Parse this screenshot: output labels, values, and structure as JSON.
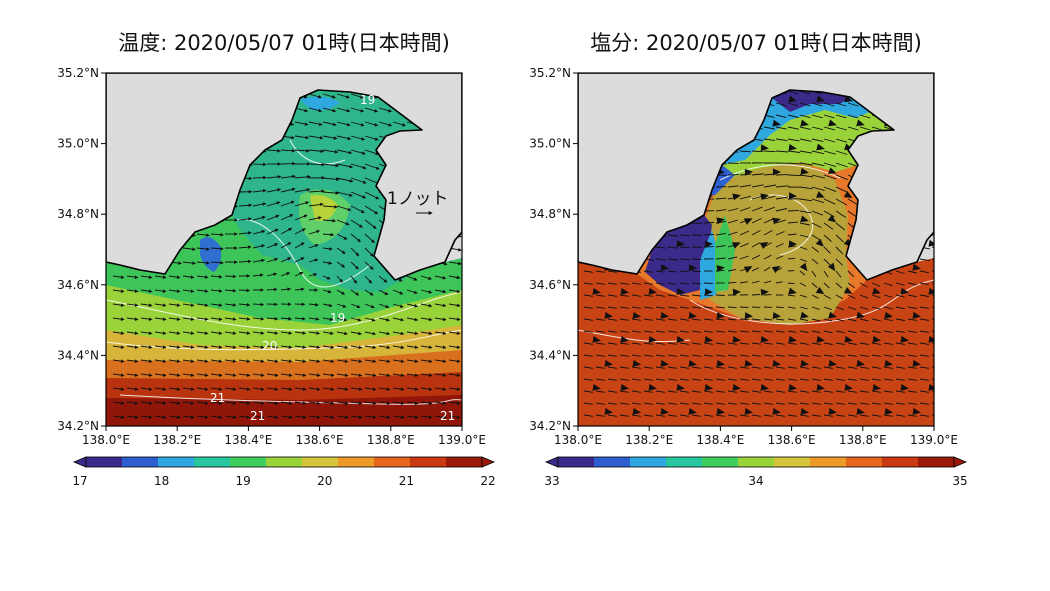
{
  "panels": [
    {
      "id": "temperature",
      "title": "温度: 2020/05/07 01時(日本時間)",
      "lat_ticks": [
        "34.2°N",
        "34.4°N",
        "34.6°N",
        "34.8°N",
        "35.0°N",
        "35.2°N"
      ],
      "lon_ticks": [
        "138.0°E",
        "138.2°E",
        "138.4°E",
        "138.6°E",
        "138.8°E",
        "139.0°E"
      ],
      "colorbar": {
        "ticks": [
          "17",
          "18",
          "19",
          "20",
          "21",
          "22"
        ],
        "colors": [
          "#3b2a8a",
          "#2e5fd0",
          "#2fa8e0",
          "#27c7a0",
          "#3ecf5c",
          "#9ad23a",
          "#d6c53a",
          "#ee9a2a",
          "#e6661e",
          "#c93a12",
          "#9b1a08"
        ]
      },
      "contour_labels": [
        "19",
        "19",
        "20",
        "21",
        "21",
        "21"
      ],
      "reference_vector_label": "1ノット"
    },
    {
      "id": "salinity",
      "title": "塩分: 2020/05/07 01時(日本時間)",
      "lat_ticks": [
        "34.2°N",
        "34.4°N",
        "34.6°N",
        "34.8°N",
        "35.0°N",
        "35.2°N"
      ],
      "lon_ticks": [
        "138.0°E",
        "138.2°E",
        "138.4°E",
        "138.6°E",
        "138.8°E",
        "139.0°E"
      ],
      "colorbar": {
        "ticks": [
          "33",
          "34",
          "35"
        ],
        "colors": [
          "#3b2a8a",
          "#2e5fd0",
          "#2fa8e0",
          "#27c7a0",
          "#3ecf5c",
          "#9ad23a",
          "#d6c53a",
          "#ee9a2a",
          "#e6661e",
          "#c93a12",
          "#9b1a08"
        ]
      }
    }
  ],
  "colors": {
    "land": "#dcdcdc",
    "frame": "#000000",
    "vector": "#111111",
    "contour": "#ffffff"
  }
}
